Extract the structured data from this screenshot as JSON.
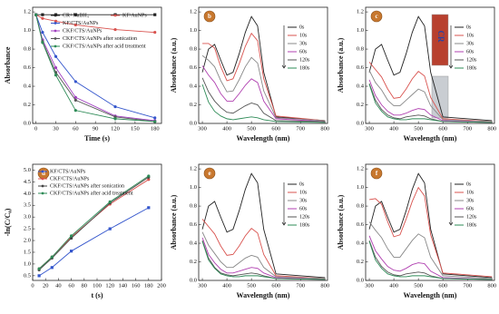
{
  "chart_data": [
    {
      "type": "line",
      "x_label": "Time (s)",
      "y_label": "Absorbance",
      "x": [
        0,
        10,
        30,
        60,
        120,
        180
      ],
      "xlim": [
        -5,
        190
      ],
      "xticks": [
        0,
        30,
        60,
        90,
        120,
        150,
        180
      ],
      "ylim": [
        0,
        1.25
      ],
      "yticks": [
        {
          "value": 0,
          "label": "0.0"
        },
        0.2,
        0.4,
        0.6,
        0.8,
        {
          "value": 1,
          "label": "1.0"
        },
        1.2
      ],
      "series": [
        {
          "name": "CR+NaBH₄",
          "color": "#222222",
          "marker": "square",
          "values": [
            1.17,
            1.17,
            1.17,
            1.17,
            1.17,
            1.17
          ]
        },
        {
          "name": "KF/AuNPs",
          "color": "#d9534f",
          "marker": "circle",
          "values": [
            1.17,
            1.13,
            1.1,
            1.06,
            1.01,
            0.98
          ]
        },
        {
          "name": "KF/CTS/AuNPs",
          "color": "#3355cc",
          "marker": "circle",
          "values": [
            1.17,
            0.98,
            0.72,
            0.45,
            0.18,
            0.06
          ]
        },
        {
          "name": "CKF/CTS/AuNPs",
          "color": "#a040c0",
          "marker": "circle",
          "values": [
            1.17,
            0.9,
            0.6,
            0.28,
            0.08,
            0.03
          ]
        },
        {
          "name": "CKF/CTS/AuNPs after sonication",
          "color": "#555555",
          "marker": "circle",
          "values": [
            1.17,
            0.88,
            0.55,
            0.25,
            0.07,
            0.02
          ]
        },
        {
          "name": "CKF/CTS/AuNPs after acid treatment",
          "color": "#2e8b57",
          "marker": "circle",
          "values": [
            1.17,
            0.87,
            0.52,
            0.14,
            0.05,
            0.02
          ]
        }
      ]
    },
    {
      "type": "line",
      "label": "b",
      "x_label": "Wavelength (nm)",
      "y_label": "Absorbance (a.u.)",
      "x": [
        300,
        325,
        350,
        375,
        400,
        425,
        450,
        475,
        500,
        525,
        550,
        600,
        800
      ],
      "xlim": [
        285,
        810
      ],
      "xticks": [
        300,
        400,
        500,
        600,
        700,
        800
      ],
      "ylim": [
        0,
        1.25
      ],
      "yticks": [
        {
          "value": 0,
          "label": "0.0"
        },
        0.2,
        0.4,
        0.6,
        0.8,
        {
          "value": 1,
          "label": "1.0"
        },
        1.2
      ],
      "series": [
        {
          "name": "0s",
          "color": "#222222",
          "values": [
            0.55,
            0.8,
            0.85,
            0.68,
            0.52,
            0.55,
            0.75,
            0.98,
            1.15,
            1.05,
            0.55,
            0.07,
            0.03
          ]
        },
        {
          "name": "10s",
          "color": "#d9534f",
          "values": [
            0.86,
            0.86,
            0.81,
            0.61,
            0.46,
            0.48,
            0.64,
            0.83,
            0.97,
            0.89,
            0.48,
            0.08,
            0.03
          ]
        },
        {
          "name": "30s",
          "color": "#888888",
          "values": [
            0.73,
            0.68,
            0.61,
            0.46,
            0.34,
            0.35,
            0.47,
            0.61,
            0.71,
            0.65,
            0.35,
            0.06,
            0.03
          ]
        },
        {
          "name": "60s",
          "color": "#b040b0",
          "values": [
            0.62,
            0.52,
            0.44,
            0.32,
            0.24,
            0.24,
            0.32,
            0.41,
            0.48,
            0.44,
            0.24,
            0.05,
            0.02
          ]
        },
        {
          "name": "120s",
          "color": "#555555",
          "values": [
            0.49,
            0.34,
            0.24,
            0.17,
            0.12,
            0.11,
            0.15,
            0.19,
            0.22,
            0.2,
            0.11,
            0.03,
            0.02
          ]
        },
        {
          "name": "180s",
          "color": "#2e8b57",
          "values": [
            0.42,
            0.23,
            0.13,
            0.08,
            0.05,
            0.04,
            0.05,
            0.06,
            0.07,
            0.06,
            0.04,
            0.02,
            0.01
          ]
        }
      ]
    },
    {
      "type": "line",
      "label": "c",
      "annotation": "CR",
      "x_label": "Wavelength (nm)",
      "y_label": "Absorbance (a.u.)",
      "x": [
        300,
        325,
        350,
        375,
        400,
        425,
        450,
        475,
        500,
        525,
        550,
        600,
        800
      ],
      "xlim": [
        285,
        810
      ],
      "xticks": [
        300,
        400,
        500,
        600,
        700,
        800
      ],
      "ylim": [
        0,
        1.25
      ],
      "yticks": [
        {
          "value": 0,
          "label": "0.0"
        },
        0.2,
        0.4,
        0.6,
        0.8,
        {
          "value": 1,
          "label": "1.0"
        },
        1.2
      ],
      "series": [
        {
          "name": "0s",
          "color": "#222222",
          "values": [
            0.55,
            0.8,
            0.85,
            0.68,
            0.52,
            0.55,
            0.75,
            0.98,
            1.15,
            1.05,
            0.55,
            0.07,
            0.03
          ]
        },
        {
          "name": "10s",
          "color": "#d9534f",
          "values": [
            0.66,
            0.58,
            0.5,
            0.37,
            0.27,
            0.28,
            0.37,
            0.48,
            0.56,
            0.51,
            0.28,
            0.05,
            0.02
          ]
        },
        {
          "name": "30s",
          "color": "#888888",
          "values": [
            0.57,
            0.44,
            0.36,
            0.25,
            0.19,
            0.19,
            0.25,
            0.31,
            0.37,
            0.34,
            0.19,
            0.04,
            0.02
          ]
        },
        {
          "name": "60s",
          "color": "#b040b0",
          "values": [
            0.47,
            0.3,
            0.2,
            0.13,
            0.09,
            0.09,
            0.11,
            0.14,
            0.16,
            0.15,
            0.09,
            0.03,
            0.01
          ]
        },
        {
          "name": "120s",
          "color": "#555555",
          "values": [
            0.43,
            0.25,
            0.15,
            0.09,
            0.06,
            0.05,
            0.07,
            0.08,
            0.09,
            0.08,
            0.05,
            0.02,
            0.01
          ]
        },
        {
          "name": "180s",
          "color": "#2e8b57",
          "values": [
            0.42,
            0.22,
            0.13,
            0.07,
            0.05,
            0.04,
            0.04,
            0.05,
            0.05,
            0.05,
            0.04,
            0.02,
            0.01
          ]
        }
      ]
    },
    {
      "type": "line",
      "label": "d",
      "x_label": "t (s)",
      "y_label": "-ln(C/C₀)",
      "x": [
        10,
        30,
        60,
        120,
        180
      ],
      "xlim": [
        0,
        200
      ],
      "xticks": [
        0,
        20,
        40,
        60,
        80,
        100,
        120,
        140,
        160,
        180,
        200
      ],
      "ylim": [
        0.3,
        5.25
      ],
      "yticks": [
        0.5,
        {
          "value": 1,
          "label": "1.0"
        },
        1.5,
        {
          "value": 2,
          "label": "2.0"
        },
        2.5,
        {
          "value": 3,
          "label": "3.0"
        },
        3.5,
        {
          "value": 4,
          "label": "4.0"
        },
        4.5,
        {
          "value": 5,
          "label": "5.0"
        }
      ],
      "series": [
        {
          "name": "KF/CTS/AuNPs",
          "color": "#3355cc",
          "marker": "square",
          "values": [
            0.5,
            0.85,
            1.55,
            2.5,
            3.4
          ]
        },
        {
          "name": "CKF/CTS/AuNPs",
          "color": "#d9534f",
          "marker": "circle",
          "values": [
            0.8,
            1.3,
            2.15,
            3.55,
            4.6
          ]
        },
        {
          "name": "CKF/CTS/AuNPs after sonication",
          "color": "#444444",
          "marker": "circle",
          "values": [
            0.75,
            1.25,
            2.1,
            3.6,
            4.7
          ]
        },
        {
          "name": "CKF/CTS/AuNPs after acid treatment",
          "color": "#2e8b57",
          "marker": "circle",
          "values": [
            0.8,
            1.3,
            2.2,
            3.65,
            4.75
          ]
        }
      ]
    },
    {
      "type": "line",
      "label": "e",
      "x_label": "Wavelength (nm)",
      "y_label": "Absorbance (a.u.)",
      "x": [
        300,
        325,
        350,
        375,
        400,
        425,
        450,
        475,
        500,
        525,
        550,
        600,
        800
      ],
      "xlim": [
        285,
        810
      ],
      "xticks": [
        300,
        400,
        500,
        600,
        700,
        800
      ],
      "ylim": [
        0,
        1.25
      ],
      "yticks": [
        {
          "value": 0,
          "label": "0.0"
        },
        0.2,
        0.4,
        0.6,
        0.8,
        {
          "value": 1,
          "label": "1.0"
        },
        1.2
      ],
      "series": [
        {
          "name": "0s",
          "color": "#222222",
          "values": [
            0.55,
            0.8,
            0.85,
            0.68,
            0.52,
            0.55,
            0.75,
            0.98,
            1.15,
            1.05,
            0.55,
            0.07,
            0.03
          ]
        },
        {
          "name": "10s",
          "color": "#d9534f",
          "values": [
            0.66,
            0.58,
            0.5,
            0.37,
            0.27,
            0.28,
            0.37,
            0.48,
            0.56,
            0.51,
            0.28,
            0.05,
            0.02
          ]
        },
        {
          "name": "30s",
          "color": "#888888",
          "values": [
            0.52,
            0.38,
            0.29,
            0.2,
            0.14,
            0.14,
            0.19,
            0.24,
            0.27,
            0.25,
            0.14,
            0.04,
            0.02
          ]
        },
        {
          "name": "60s",
          "color": "#b040b0",
          "values": [
            0.46,
            0.28,
            0.19,
            0.12,
            0.08,
            0.08,
            0.1,
            0.12,
            0.14,
            0.13,
            0.08,
            0.03,
            0.01
          ]
        },
        {
          "name": "120s",
          "color": "#555555",
          "values": [
            0.43,
            0.24,
            0.14,
            0.08,
            0.06,
            0.05,
            0.06,
            0.07,
            0.08,
            0.07,
            0.05,
            0.02,
            0.01
          ]
        },
        {
          "name": "180s",
          "color": "#2e8b57",
          "values": [
            0.42,
            0.22,
            0.13,
            0.07,
            0.05,
            0.04,
            0.04,
            0.05,
            0.05,
            0.05,
            0.04,
            0.02,
            0.01
          ]
        }
      ]
    },
    {
      "type": "line",
      "label": "f",
      "x_label": "Wavelength (nm)",
      "y_label": "Absorbance (a.u.)",
      "x": [
        300,
        325,
        350,
        375,
        400,
        425,
        450,
        475,
        500,
        525,
        550,
        600,
        800
      ],
      "xlim": [
        285,
        810
      ],
      "xticks": [
        300,
        400,
        500,
        600,
        700,
        800
      ],
      "ylim": [
        0,
        1.25
      ],
      "yticks": [
        {
          "value": 0,
          "label": "0.0"
        },
        0.2,
        0.4,
        0.6,
        0.8,
        {
          "value": 1,
          "label": "1.0"
        },
        1.2
      ],
      "series": [
        {
          "name": "0s",
          "color": "#222222",
          "values": [
            0.55,
            0.8,
            0.85,
            0.68,
            0.52,
            0.55,
            0.75,
            0.98,
            1.15,
            1.05,
            0.55,
            0.07,
            0.03
          ]
        },
        {
          "name": "10s",
          "color": "#d9534f",
          "values": [
            0.87,
            0.88,
            0.82,
            0.63,
            0.47,
            0.49,
            0.66,
            0.85,
            1.0,
            0.91,
            0.49,
            0.08,
            0.04
          ]
        },
        {
          "name": "30s",
          "color": "#888888",
          "values": [
            0.63,
            0.54,
            0.46,
            0.34,
            0.25,
            0.25,
            0.34,
            0.43,
            0.5,
            0.46,
            0.25,
            0.05,
            0.02
          ]
        },
        {
          "name": "60s",
          "color": "#b040b0",
          "values": [
            0.48,
            0.32,
            0.23,
            0.15,
            0.11,
            0.1,
            0.13,
            0.17,
            0.19,
            0.18,
            0.1,
            0.03,
            0.01
          ]
        },
        {
          "name": "120s",
          "color": "#555555",
          "values": [
            0.43,
            0.25,
            0.15,
            0.09,
            0.06,
            0.05,
            0.07,
            0.08,
            0.09,
            0.08,
            0.05,
            0.02,
            0.01
          ]
        },
        {
          "name": "180s",
          "color": "#2e8b57",
          "values": [
            0.42,
            0.22,
            0.13,
            0.07,
            0.05,
            0.04,
            0.04,
            0.05,
            0.05,
            0.05,
            0.04,
            0.02,
            0.01
          ]
        }
      ]
    }
  ]
}
